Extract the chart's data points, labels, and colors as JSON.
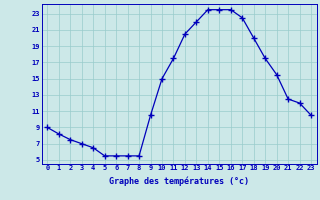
{
  "x": [
    0,
    1,
    2,
    3,
    4,
    5,
    6,
    7,
    8,
    9,
    10,
    11,
    12,
    13,
    14,
    15,
    16,
    17,
    18,
    19,
    20,
    21,
    22,
    23
  ],
  "y": [
    9,
    8.2,
    7.5,
    7.0,
    6.5,
    5.5,
    5.5,
    5.5,
    5.5,
    10.5,
    15.0,
    17.5,
    20.5,
    22.0,
    23.5,
    23.5,
    23.5,
    22.5,
    20.0,
    17.5,
    15.5,
    12.5,
    12.0,
    10.5
  ],
  "xlim": [
    -0.5,
    23.5
  ],
  "ylim": [
    4.5,
    24.2
  ],
  "yticks": [
    5,
    7,
    9,
    11,
    13,
    15,
    17,
    19,
    21,
    23
  ],
  "xticks": [
    0,
    1,
    2,
    3,
    4,
    5,
    6,
    7,
    8,
    9,
    10,
    11,
    12,
    13,
    14,
    15,
    16,
    17,
    18,
    19,
    20,
    21,
    22,
    23
  ],
  "xlabel": "Graphe des températures (°c)",
  "line_color": "#0000bb",
  "marker": "+",
  "marker_size": 4,
  "marker_linewidth": 1.0,
  "bg_color": "#cce8e8",
  "grid_color": "#99cccc",
  "axis_color": "#0000bb",
  "label_color": "#0000bb",
  "tick_fontsize": 5.0,
  "xlabel_fontsize": 6.0
}
